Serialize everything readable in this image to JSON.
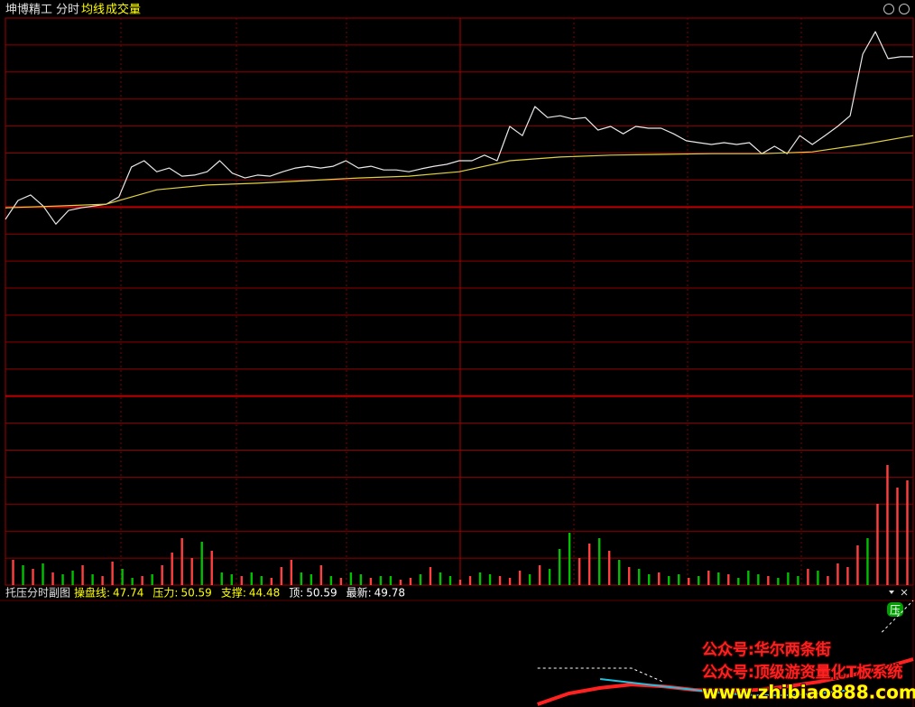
{
  "header": {
    "stock": "坤博精工",
    "mode": "分时",
    "avg_label": "均线",
    "volume_label": "成交量"
  },
  "indicator_header": {
    "name": "托压分时副图",
    "items": [
      {
        "label": "操盘线:",
        "value": 47.74,
        "color": "#ffff00"
      },
      {
        "label": "压力:",
        "value": 50.59,
        "color": "#ffff00"
      },
      {
        "label": "支撑:",
        "value": 44.48,
        "color": "#ffff00"
      },
      {
        "label": "顶:",
        "value": 50.59,
        "color": "#ffffff"
      },
      {
        "label": "最新:",
        "value": 49.78,
        "color": "#ffffff"
      }
    ]
  },
  "badge": "压",
  "watermark": {
    "line1": "公众号:华尔两条街",
    "line2": "公众号:顶级游资量化T板系统",
    "line3": "www.zhibiao888.com"
  },
  "chart_data": [
    {
      "type": "line",
      "ylim": [
        40.54,
        50.83
      ],
      "series": [
        {
          "name": "分时",
          "color": "#e8e8e8",
          "values": [
            45.37,
            45.88,
            46.03,
            45.73,
            45.24,
            45.61,
            45.68,
            45.73,
            45.78,
            45.98,
            46.79,
            46.96,
            46.66,
            46.76,
            46.54,
            46.57,
            46.66,
            46.96,
            46.62,
            46.49,
            46.57,
            46.54,
            46.66,
            46.76,
            46.81,
            46.76,
            46.81,
            46.96,
            46.76,
            46.81,
            46.71,
            46.71,
            46.66,
            46.74,
            46.81,
            46.86,
            46.96,
            46.96,
            47.11,
            46.96,
            47.89,
            47.64,
            48.43,
            48.13,
            48.18,
            48.09,
            48.13,
            47.79,
            47.89,
            47.69,
            47.89,
            47.84,
            47.84,
            47.69,
            47.5,
            47.45,
            47.4,
            47.45,
            47.4,
            47.45,
            47.15,
            47.35,
            47.15,
            47.64,
            47.4,
            47.64,
            47.89,
            48.18,
            49.85,
            50.46,
            49.73,
            49.78,
            49.78
          ]
        },
        {
          "name": "均线",
          "color": "#e0d040",
          "values": [
            45.68,
            45.73,
            45.78,
            46.17,
            46.3,
            46.35,
            46.42,
            46.49,
            46.54,
            46.66,
            46.96,
            47.06,
            47.11,
            47.13,
            47.15,
            47.15,
            47.2,
            47.4,
            47.64
          ]
        }
      ]
    },
    {
      "type": "bar",
      "ylim": [
        0,
        208
      ],
      "values": [
        28,
        22,
        18,
        24,
        14,
        12,
        16,
        22,
        12,
        10,
        26,
        18,
        8,
        10,
        12,
        22,
        36,
        52,
        30,
        48,
        38,
        14,
        12,
        10,
        14,
        10,
        8,
        20,
        28,
        14,
        12,
        22,
        10,
        8,
        14,
        12,
        8,
        10,
        10,
        6,
        8,
        12,
        20,
        14,
        10,
        6,
        10,
        14,
        12,
        10,
        8,
        16,
        12,
        22,
        18,
        40,
        58,
        30,
        46,
        52,
        38,
        28,
        20,
        18,
        12,
        14,
        10,
        12,
        8,
        10,
        16,
        14,
        12,
        8,
        16,
        12,
        10,
        8,
        14,
        10,
        18,
        16,
        10,
        24,
        20,
        44,
        52,
        90,
        133,
        108,
        116
      ],
      "colors": [
        "#ff4040",
        "#00c000",
        "#ff4040",
        "#00c000",
        "#ff4040",
        "#00c000",
        "#00c000",
        "#ff4040",
        "#00c000",
        "#ff4040",
        "#ff4040",
        "#00c000",
        "#00c000",
        "#ff4040",
        "#00c000",
        "#ff4040",
        "#ff4040",
        "#ff4040",
        "#ff4040",
        "#00c000",
        "#ff4040",
        "#00c000",
        "#00c000",
        "#ff4040",
        "#00c000",
        "#00c000",
        "#ff4040",
        "#ff4040",
        "#ff4040",
        "#00c000",
        "#00c000",
        "#ff4040",
        "#00c000",
        "#ff4040",
        "#00c000",
        "#00c000",
        "#ff4040",
        "#00c000",
        "#00c000",
        "#ff4040",
        "#ff4040",
        "#00c000",
        "#ff4040",
        "#00c000",
        "#00c000",
        "#ff4040",
        "#ff4040",
        "#00c000",
        "#00c000",
        "#ff4040",
        "#ff4040",
        "#ff4040",
        "#00c000",
        "#ff4040",
        "#00c000",
        "#00c000",
        "#00c000",
        "#ff4040",
        "#ff4040",
        "#00c000",
        "#ff4040",
        "#00c000",
        "#ff4040",
        "#00c000",
        "#00c000",
        "#ff4040",
        "#00c000",
        "#00c000",
        "#ff4040",
        "#00c000",
        "#ff4040",
        "#00c000",
        "#ff4040",
        "#00c000",
        "#00c000",
        "#00c000",
        "#ff4040",
        "#00c000",
        "#00c000",
        "#00c000",
        "#ff4040",
        "#00c000",
        "#ff4040",
        "#ff4040",
        "#ff4040",
        "#ff4040",
        "#00c000",
        "#ff4040",
        "#ff4040",
        "#ff4040",
        "#ff4040"
      ]
    },
    {
      "type": "line",
      "ylim": [
        44.0,
        51.0
      ],
      "series": [
        {
          "color": "#ff2020",
          "width": 4,
          "dashed": false,
          "values": [
            null,
            null,
            null,
            null,
            null,
            null,
            null,
            null,
            null,
            null,
            null,
            null,
            null,
            null,
            null,
            null,
            null,
            44.18,
            44.89,
            45.25,
            45.48,
            45.36,
            45.13,
            45.01,
            45.13,
            45.36,
            45.66,
            46.08,
            46.55,
            47.14
          ]
        },
        {
          "color": "#20c0e0",
          "width": 2,
          "dashed": false,
          "values": [
            null,
            null,
            null,
            null,
            null,
            null,
            null,
            null,
            null,
            null,
            null,
            null,
            null,
            null,
            null,
            null,
            null,
            null,
            null,
            45.84,
            45.6,
            45.36,
            45.13,
            44.89,
            44.77,
            44.77,
            44.89,
            45.13,
            null,
            null
          ]
        },
        {
          "color": "#ffffff",
          "width": 1,
          "dashed": true,
          "values": [
            null,
            null,
            null,
            null,
            null,
            null,
            null,
            null,
            null,
            null,
            null,
            null,
            null,
            null,
            null,
            null,
            null,
            46.55,
            46.55,
            46.55,
            46.55,
            45.66,
            null,
            null,
            null,
            null,
            null,
            null,
            48.92,
            51.0
          ]
        }
      ]
    }
  ]
}
